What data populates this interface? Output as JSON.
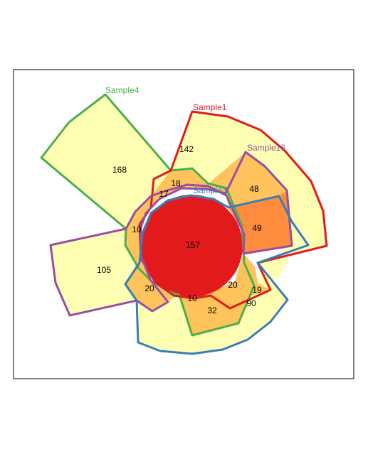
{
  "colors": {
    "background": "#ffffff",
    "level1": "#ffffb3",
    "level2": "#fec35a",
    "level3": "#fd8d3c",
    "level4": "#e31a1c",
    "Sample1": "#e31a1c",
    "Sample4": "#4daf4a",
    "Sample16": "#984ea3",
    "Sample3": "#377eb8"
  },
  "sets": [
    {
      "id": "Sample4",
      "label": "Sample4"
    },
    {
      "id": "Sample1",
      "label": "Sample1"
    },
    {
      "id": "Sample16",
      "label": "Sample16"
    },
    {
      "id": "Sample3",
      "label": "Sample3"
    }
  ],
  "counts": {
    "s4_only": "168",
    "s1_only": "142",
    "s16_only": "105",
    "s3_only": "90",
    "s16_s3": "48",
    "s1_s16_s3": "49",
    "s4_s1": "18",
    "s4_s1_s16": "17",
    "s4_s16": "10",
    "s16_s3_left": "20",
    "s4_s3": "32",
    "s4_s16_s3": "10",
    "s1_s3": "20",
    "s1_s3_edge": "19",
    "all": "157"
  }
}
